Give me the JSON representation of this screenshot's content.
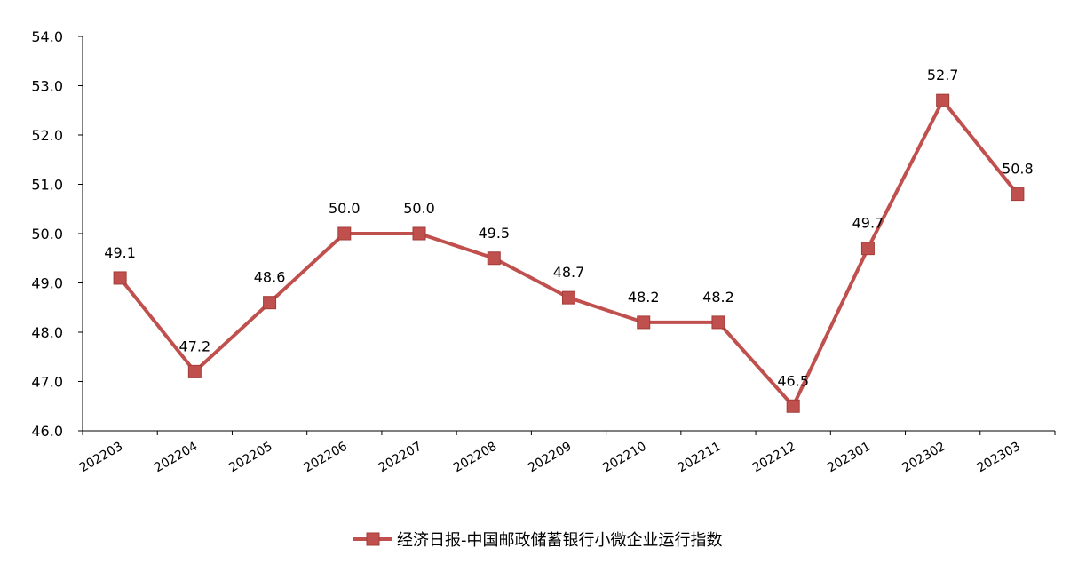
{
  "chart_data": {
    "type": "line",
    "categories": [
      "202203",
      "202204",
      "202205",
      "202206",
      "202207",
      "202208",
      "202209",
      "202210",
      "202211",
      "202212",
      "202301",
      "202302",
      "202303"
    ],
    "series": [
      {
        "name": "经济日报-中国邮政储蓄银行小微企业运行指数",
        "values": [
          49.1,
          47.2,
          48.6,
          50.0,
          50.0,
          49.5,
          48.7,
          48.2,
          48.2,
          46.5,
          49.7,
          52.7,
          50.8
        ],
        "labels": [
          "49.1",
          "47.2",
          "48.6",
          "50.0",
          "50.0",
          "49.5",
          "48.7",
          "48.2",
          "48.2",
          "46.5",
          "49.7",
          "52.7",
          "50.8"
        ],
        "color": "#C0504D",
        "marker": "square"
      }
    ],
    "y_ticks": [
      "46.0",
      "47.0",
      "48.0",
      "49.0",
      "50.0",
      "51.0",
      "52.0",
      "53.0",
      "54.0"
    ],
    "ylim": [
      46.0,
      54.0
    ],
    "title": "",
    "xlabel": "",
    "ylabel": "",
    "grid": false,
    "legend_position": "bottom"
  }
}
